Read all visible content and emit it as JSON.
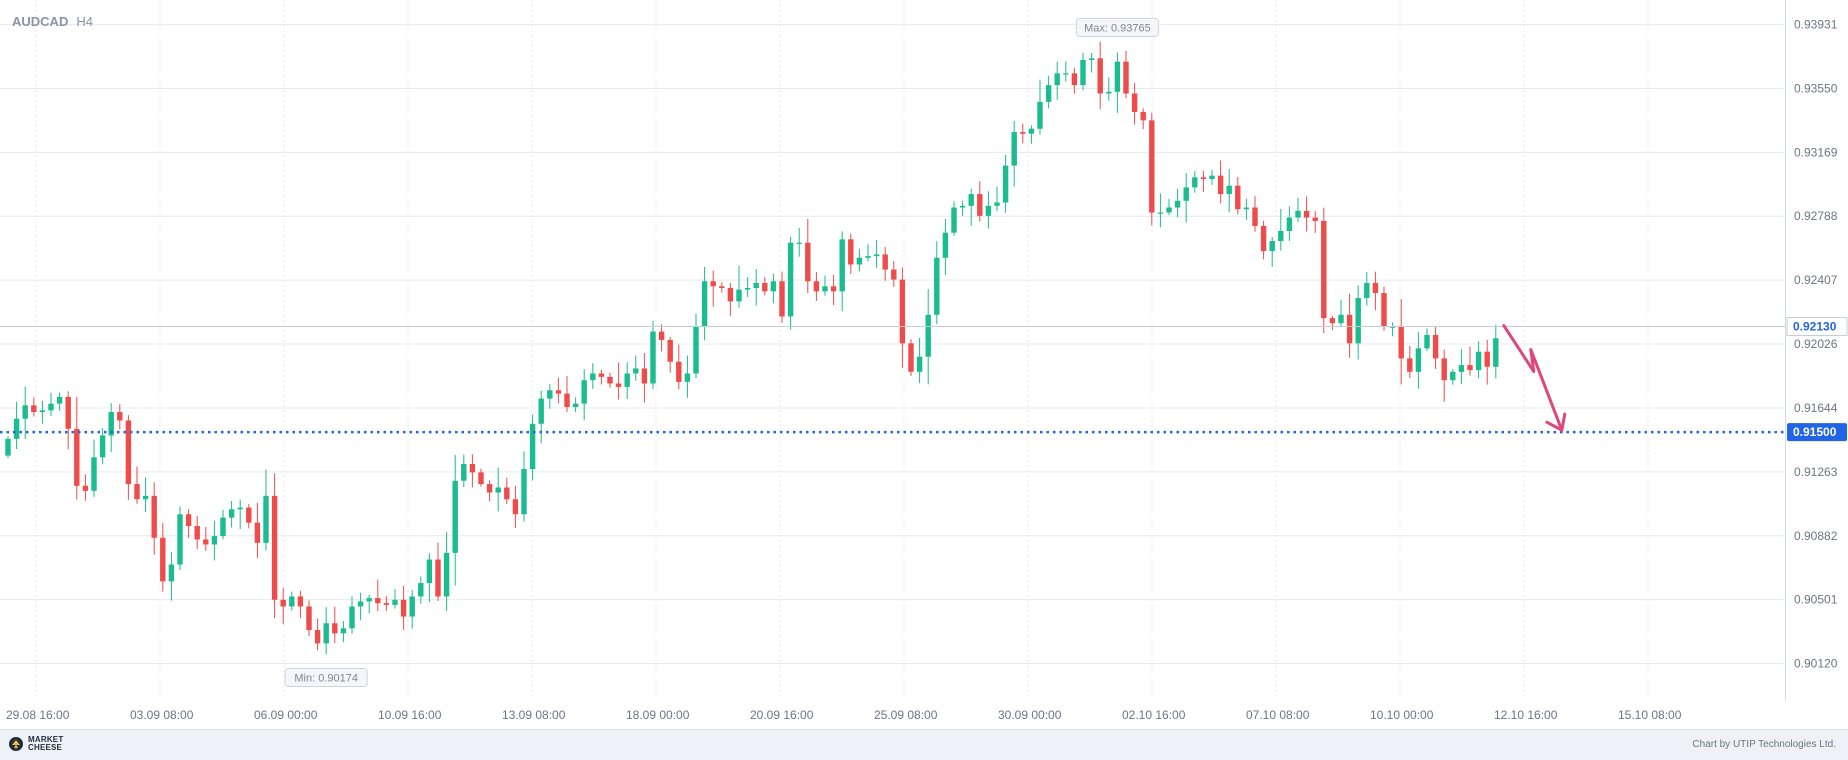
{
  "header": {
    "symbol": "AUDCAD",
    "timeframe": "H4"
  },
  "footer": {
    "brand_line1": "MARKET",
    "brand_line2": "CHEESE",
    "credit": "Chart by UTIP Technologies Ltd."
  },
  "colors": {
    "up": "#1bbc8f",
    "down": "#ee4b4b",
    "level": "#2264e6",
    "arrow": "#e0457b",
    "grid": "#e6e9ee",
    "axis_text": "#6b7585",
    "current_line": "#c7ccd4"
  },
  "chart_data": {
    "type": "candlestick",
    "symbol": "AUDCAD",
    "timeframe": "H4",
    "y_ticks": [
      "0.93931",
      "0.93550",
      "0.93169",
      "0.92788",
      "0.92407",
      "0.92026",
      "0.91644",
      "0.91263",
      "0.90882",
      "0.90501",
      "0.90120"
    ],
    "x_ticks": [
      "29.08 16:00",
      "03.09 08:00",
      "06.09 00:00",
      "10.09 16:00",
      "13.09 08:00",
      "18.09 00:00",
      "20.09 16:00",
      "25.09 08:00",
      "30.09 00:00",
      "02.10 16:00",
      "07.10 08:00",
      "10.10 00:00",
      "12.10 16:00",
      "15.10 08:00"
    ],
    "ylim": [
      0.8995,
      0.9403
    ],
    "current_price": "0.92130",
    "level": {
      "label": "0.91500",
      "value": 0.915
    },
    "max_label": "Max: 0.93765",
    "min_label": "Min: 0.90174",
    "max_value": 0.93765,
    "min_value": 0.90174,
    "forecast": "down toward 0.91500",
    "closes": [
      0.9146,
      0.9158,
      0.9166,
      0.9162,
      0.9163,
      0.9167,
      0.9171,
      0.9152,
      0.9118,
      0.9115,
      0.9135,
      0.9148,
      0.9162,
      0.9157,
      0.9119,
      0.911,
      0.9112,
      0.9087,
      0.9061,
      0.9071,
      0.9101,
      0.9094,
      0.9086,
      0.9083,
      0.9088,
      0.9099,
      0.9104,
      0.9105,
      0.9096,
      0.9084,
      0.9112,
      0.905,
      0.9046,
      0.9052,
      0.9046,
      0.9032,
      0.9024,
      0.9036,
      0.903,
      0.9033,
      0.9046,
      0.9049,
      0.9051,
      0.9048,
      0.9047,
      0.905,
      0.904,
      0.9052,
      0.906,
      0.9074,
      0.9052,
      0.9078,
      0.9121,
      0.9131,
      0.9126,
      0.9119,
      0.9114,
      0.9117,
      0.911,
      0.9101,
      0.9128,
      0.9155,
      0.917,
      0.9175,
      0.9173,
      0.9165,
      0.9167,
      0.9181,
      0.9185,
      0.9183,
      0.9179,
      0.9177,
      0.9185,
      0.9188,
      0.9179,
      0.921,
      0.9205,
      0.9192,
      0.918,
      0.9185,
      0.9213,
      0.924,
      0.9237,
      0.9236,
      0.9228,
      0.9235,
      0.9236,
      0.9239,
      0.9234,
      0.924,
      0.9219,
      0.9263,
      0.9263,
      0.924,
      0.9234,
      0.9237,
      0.9234,
      0.9265,
      0.925,
      0.9254,
      0.9255,
      0.9256,
      0.9247,
      0.9241,
      0.9203,
      0.9186,
      0.9195,
      0.922,
      0.9254,
      0.9269,
      0.9284,
      0.9285,
      0.9292,
      0.9279,
      0.9285,
      0.9287,
      0.9309,
      0.9329,
      0.9328,
      0.9331,
      0.9347,
      0.9357,
      0.9364,
      0.9364,
      0.9357,
      0.9372,
      0.9373,
      0.9352,
      0.9353,
      0.9371,
      0.9352,
      0.9341,
      0.9336,
      0.9281,
      0.9281,
      0.9284,
      0.9288,
      0.9296,
      0.9302,
      0.9301,
      0.9303,
      0.9292,
      0.9297,
      0.9283,
      0.9284,
      0.9273,
      0.9258,
      0.9264,
      0.927,
      0.9278,
      0.9282,
      0.9278,
      0.9276,
      0.9218,
      0.9215,
      0.922,
      0.9203,
      0.923,
      0.9239,
      0.9233,
      0.9213,
      0.9213,
      0.9194,
      0.9186,
      0.92,
      0.9208,
      0.9194,
      0.9181,
      0.9186,
      0.919,
      0.9187,
      0.9198,
      0.9189,
      0.9206
    ]
  }
}
